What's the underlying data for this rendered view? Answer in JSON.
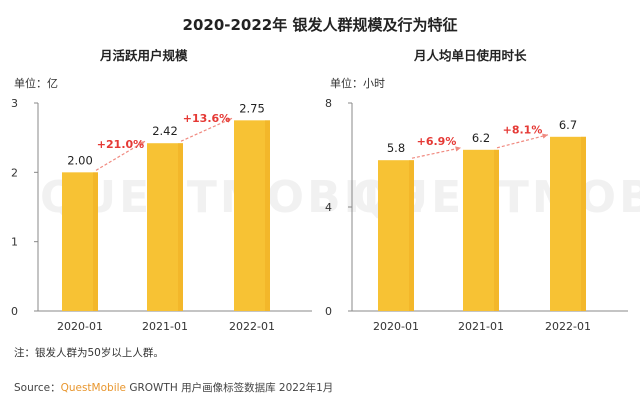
{
  "title": "2020-2022年 银发人群规模及行为特征",
  "note": "注：银发人群为50岁以上人群。",
  "source": {
    "prefix": "Source：",
    "brand": "QuestMobile",
    "suffix": " GROWTH 用户画像标签数据库 2022年1月"
  },
  "watermark": "QUESTMOBILE",
  "colors": {
    "bar": "#f7c234",
    "bar_dark": "#f0ac1f",
    "growth": "#e53935",
    "arrow": "#f08a80"
  },
  "chart_data": [
    {
      "type": "bar",
      "title": "月活跃用户规模",
      "unit_label": "单位：亿",
      "categories": [
        "2020-01",
        "2021-01",
        "2022-01"
      ],
      "values": [
        2.0,
        2.42,
        2.75
      ],
      "value_labels": [
        "2.00",
        "2.42",
        "2.75"
      ],
      "growth_labels": [
        "+21.0%",
        "+13.6%"
      ],
      "yticks": [
        0,
        1,
        2,
        3
      ],
      "ylim": [
        0,
        3
      ],
      "grid": false
    },
    {
      "type": "bar",
      "title": "月人均单日使用时长",
      "unit_label": "单位：小时",
      "categories": [
        "2020-01",
        "2021-01",
        "2022-01"
      ],
      "values": [
        5.8,
        6.2,
        6.7
      ],
      "value_labels": [
        "5.8",
        "6.2",
        "6.7"
      ],
      "growth_labels": [
        "+6.9%",
        "+8.1%"
      ],
      "yticks": [
        0,
        4,
        8
      ],
      "ylim": [
        0,
        8
      ],
      "grid": false
    }
  ]
}
